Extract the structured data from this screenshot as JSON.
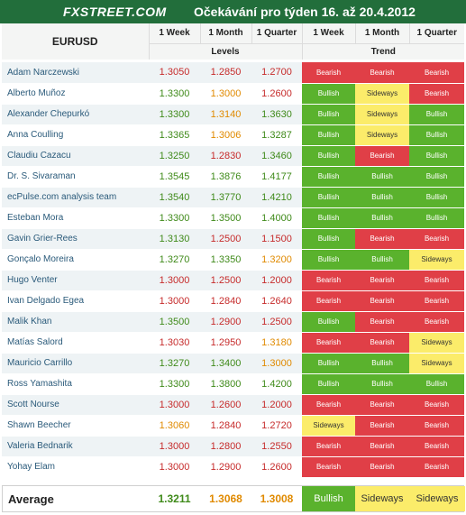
{
  "header": {
    "logo": "FXSTREET.COM",
    "title": "Očekávání pro týden 16. až 20.4.2012"
  },
  "table": {
    "pair": "EURUSD",
    "columns": [
      "1 Week",
      "1 Month",
      "1 Quarter",
      "1 Week",
      "1 Month",
      "1 Quarter"
    ],
    "group_levels": "Levels",
    "group_trend": "Trend",
    "rows": [
      {
        "name": "Adam Narczewski",
        "levels": [
          "1.3050",
          "1.2850",
          "1.2700"
        ],
        "level_colors": [
          "red",
          "red",
          "red"
        ],
        "trends": [
          "Bearish",
          "Bearish",
          "Bearish"
        ]
      },
      {
        "name": "Alberto Muñoz",
        "levels": [
          "1.3300",
          "1.3000",
          "1.2600"
        ],
        "level_colors": [
          "green",
          "orange",
          "red"
        ],
        "trends": [
          "Bullish",
          "Sideways",
          "Bearish"
        ]
      },
      {
        "name": "Alexander Chepurkó",
        "levels": [
          "1.3300",
          "1.3140",
          "1.3630"
        ],
        "level_colors": [
          "green",
          "orange",
          "green"
        ],
        "trends": [
          "Bullish",
          "Sideways",
          "Bullish"
        ]
      },
      {
        "name": "Anna Coulling",
        "levels": [
          "1.3365",
          "1.3006",
          "1.3287"
        ],
        "level_colors": [
          "green",
          "orange",
          "green"
        ],
        "trends": [
          "Bullish",
          "Sideways",
          "Bullish"
        ]
      },
      {
        "name": "Claudiu Cazacu",
        "levels": [
          "1.3250",
          "1.2830",
          "1.3460"
        ],
        "level_colors": [
          "green",
          "red",
          "green"
        ],
        "trends": [
          "Bullish",
          "Bearish",
          "Bullish"
        ]
      },
      {
        "name": "Dr. S. Sivaraman",
        "levels": [
          "1.3545",
          "1.3876",
          "1.4177"
        ],
        "level_colors": [
          "green",
          "green",
          "green"
        ],
        "trends": [
          "Bullish",
          "Bullish",
          "Bullish"
        ]
      },
      {
        "name": "ecPulse.com analysis team",
        "levels": [
          "1.3540",
          "1.3770",
          "1.4210"
        ],
        "level_colors": [
          "green",
          "green",
          "green"
        ],
        "trends": [
          "Bullish",
          "Bullish",
          "Bullish"
        ]
      },
      {
        "name": "Esteban Mora",
        "levels": [
          "1.3300",
          "1.3500",
          "1.4000"
        ],
        "level_colors": [
          "green",
          "green",
          "green"
        ],
        "trends": [
          "Bullish",
          "Bullish",
          "Bullish"
        ]
      },
      {
        "name": "Gavin Grier-Rees",
        "levels": [
          "1.3130",
          "1.2500",
          "1.1500"
        ],
        "level_colors": [
          "green",
          "red",
          "red"
        ],
        "trends": [
          "Bullish",
          "Bearish",
          "Bearish"
        ]
      },
      {
        "name": "Gonçalo Moreira",
        "levels": [
          "1.3270",
          "1.3350",
          "1.3200"
        ],
        "level_colors": [
          "green",
          "green",
          "orange"
        ],
        "trends": [
          "Bullish",
          "Bullish",
          "Sideways"
        ]
      },
      {
        "name": "Hugo Venter",
        "levels": [
          "1.3000",
          "1.2500",
          "1.2000"
        ],
        "level_colors": [
          "red",
          "red",
          "red"
        ],
        "trends": [
          "Bearish",
          "Bearish",
          "Bearish"
        ]
      },
      {
        "name": "Ivan Delgado Egea",
        "levels": [
          "1.3000",
          "1.2840",
          "1.2640"
        ],
        "level_colors": [
          "red",
          "red",
          "red"
        ],
        "trends": [
          "Bearish",
          "Bearish",
          "Bearish"
        ]
      },
      {
        "name": "Malik Khan",
        "levels": [
          "1.3500",
          "1.2900",
          "1.2500"
        ],
        "level_colors": [
          "green",
          "red",
          "red"
        ],
        "trends": [
          "Bullish",
          "Bearish",
          "Bearish"
        ]
      },
      {
        "name": "Matías Salord",
        "levels": [
          "1.3030",
          "1.2950",
          "1.3180"
        ],
        "level_colors": [
          "red",
          "red",
          "orange"
        ],
        "trends": [
          "Bearish",
          "Bearish",
          "Sideways"
        ]
      },
      {
        "name": "Mauricio Carrillo",
        "levels": [
          "1.3270",
          "1.3400",
          "1.3000"
        ],
        "level_colors": [
          "green",
          "green",
          "orange"
        ],
        "trends": [
          "Bullish",
          "Bullish",
          "Sideways"
        ]
      },
      {
        "name": "Ross Yamashita",
        "levels": [
          "1.3300",
          "1.3800",
          "1.4200"
        ],
        "level_colors": [
          "green",
          "green",
          "green"
        ],
        "trends": [
          "Bullish",
          "Bullish",
          "Bullish"
        ]
      },
      {
        "name": "Scott Nourse",
        "levels": [
          "1.3000",
          "1.2600",
          "1.2000"
        ],
        "level_colors": [
          "red",
          "red",
          "red"
        ],
        "trends": [
          "Bearish",
          "Bearish",
          "Bearish"
        ]
      },
      {
        "name": "Shawn Beecher",
        "levels": [
          "1.3060",
          "1.2840",
          "1.2720"
        ],
        "level_colors": [
          "orange",
          "red",
          "red"
        ],
        "trends": [
          "Sideways",
          "Bearish",
          "Bearish"
        ]
      },
      {
        "name": "Valeria Bednarik",
        "levels": [
          "1.3000",
          "1.2800",
          "1.2550"
        ],
        "level_colors": [
          "red",
          "red",
          "red"
        ],
        "trends": [
          "Bearish",
          "Bearish",
          "Bearish"
        ]
      },
      {
        "name": "Yohay Elam",
        "levels": [
          "1.3000",
          "1.2900",
          "1.2600"
        ],
        "level_colors": [
          "red",
          "red",
          "red"
        ],
        "trends": [
          "Bearish",
          "Bearish",
          "Bearish"
        ]
      }
    ]
  },
  "average": {
    "label": "Average",
    "levels": [
      "1.3211",
      "1.3068",
      "1.3008"
    ],
    "level_colors": [
      "green",
      "orange",
      "orange"
    ],
    "trends": [
      "Bullish",
      "Sideways",
      "Sideways"
    ]
  },
  "colors": {
    "header_bg": "#226e3b",
    "bearish": "#e03f47",
    "bullish": "#5ab22d",
    "sideways": "#fbec6a",
    "level_red": "#c62b2b",
    "level_green": "#3f8a1a",
    "level_orange": "#e08a00"
  }
}
